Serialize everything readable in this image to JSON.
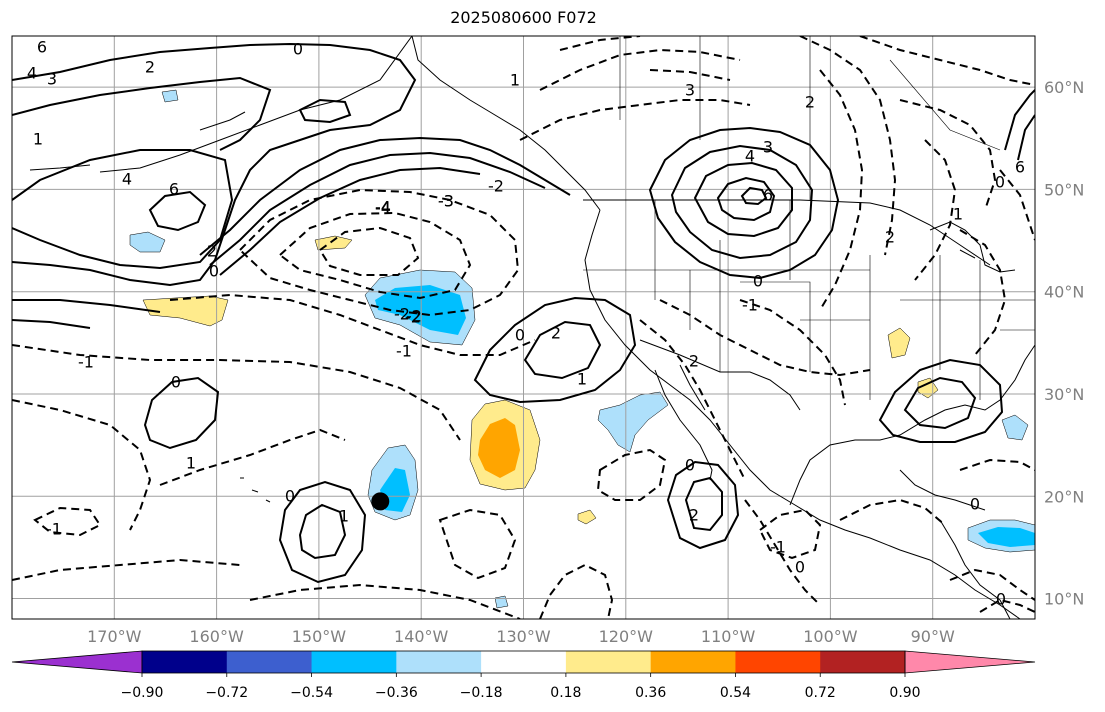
{
  "title": "2025080600 F072",
  "map": {
    "lon_range": [
      -180,
      -80
    ],
    "lat_range": [
      8,
      65
    ],
    "latitude_labels": [
      "60°N",
      "50°N",
      "40°N",
      "30°N",
      "20°N",
      "10°N"
    ],
    "longitude_labels": [
      "170°W",
      "160°W",
      "150°W",
      "140°W",
      "130°W",
      "120°W",
      "110°W",
      "100°W",
      "90°W"
    ],
    "grid": true,
    "marker": {
      "lon": -144,
      "lat": 19.5,
      "shape": "filled-circle",
      "color": "#000000"
    },
    "contour_labels": [
      "6",
      "4",
      "3",
      "2",
      "0",
      "1",
      "-1",
      "-2",
      "-3",
      "-4",
      "2",
      "0",
      "-2",
      "4",
      "3",
      "6",
      "0",
      "-1",
      "2",
      "0",
      "1",
      "2",
      "0",
      "-1",
      "-2",
      "0",
      "1",
      "2",
      "-1",
      "0",
      "0",
      "-1",
      "1",
      "6",
      "4",
      "-2",
      "0",
      "0",
      "1",
      "2",
      "3",
      "-3",
      "-4",
      "2",
      "0",
      "6",
      "1"
    ]
  },
  "colorbar": {
    "tick_labels": [
      "−0.90",
      "−0.72",
      "−0.54",
      "−0.36",
      "−0.18",
      "0.18",
      "0.36",
      "0.54",
      "0.72",
      "0.90"
    ],
    "colors": [
      "#9b30d0",
      "#00008b",
      "#3d5fcf",
      "#00bfff",
      "#aee0fb",
      "#ffffff",
      "#ffeb8c",
      "#ffa500",
      "#ff4500",
      "#b22222",
      "#ff88aa"
    ],
    "extend": "both"
  },
  "colors": {
    "land_outline": "#000000",
    "contour": "#000000",
    "grid": "#a0a0a0"
  }
}
